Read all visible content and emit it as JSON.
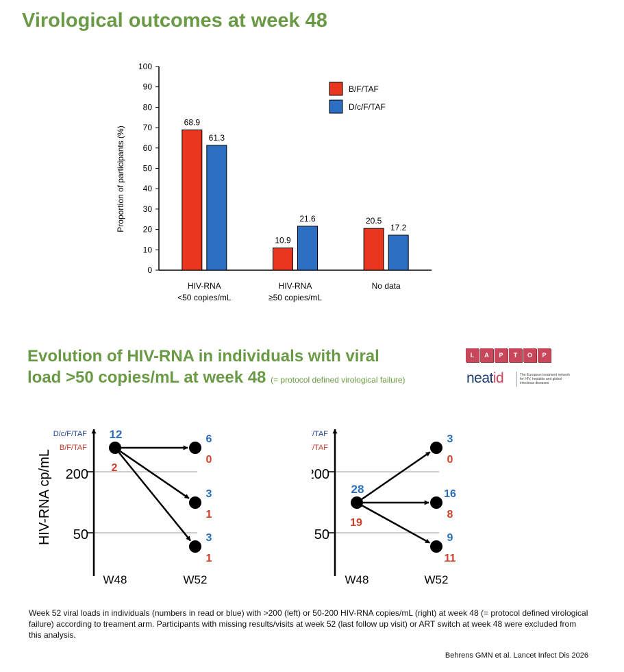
{
  "page": {
    "title": "Virological outcomes at week 48",
    "section_title_line1": "Evolution of HIV-RNA in individuals with viral",
    "section_title_line2": "load >50 copies/mL at week 48",
    "section_title_note": "(= protocol defined virological failure)",
    "caption": "Week 52 viral loads in individuals (numbers in read or blue) with >200 (left) or 50-200 HIV-RNA copies/mL (right) at week 48 (= protocol defined virological failure) according to treament arm. Participants with missing results/visits at week 52 (last follow up visit) or ART switch at week 48 were excluded from this analysis.",
    "reference": "Behrens GMN et al. Lancet Infect Dis 2026"
  },
  "logos": {
    "laptop_letters": [
      "L",
      "A",
      "P",
      "T",
      "O",
      "P"
    ],
    "neatid_main": "neat",
    "neatid_accent": "id",
    "neatid_tagline": "The European treatment network for HIV, hepatitis and global infectious diseases"
  },
  "colors": {
    "title_green": "#6a9a45",
    "bf_taf": "#e8361f",
    "dcf_taf": "#2c6fc2",
    "bf_label": "#c0392b",
    "dcf_label": "#1f3f8c",
    "count_blue": "#2a6fb8",
    "count_red": "#d0402a"
  },
  "chart_data": [
    {
      "type": "bar",
      "categories": [
        "HIV-RNA\n<50 copies/mL",
        "HIV-RNA\n≥50 copies/mL",
        "No data"
      ],
      "series": [
        {
          "name": "B/F/TAF",
          "color": "#e8361f",
          "values": [
            68.9,
            10.9,
            20.5
          ]
        },
        {
          "name": "D/c/F/TAF",
          "color": "#2c6fc2",
          "values": [
            61.3,
            21.6,
            17.2
          ]
        }
      ],
      "ylabel": "Proportion of participants (%)",
      "ylim": [
        0,
        100
      ],
      "yticks": [
        0,
        10,
        20,
        30,
        40,
        50,
        60,
        70,
        80,
        90,
        100
      ],
      "legend": "top-right",
      "grid": false
    },
    {
      "type": "flow",
      "ylabel": "HIV-RNA cp/mL",
      "yticks": [
        200,
        50
      ],
      "x_labels": [
        "W48",
        "W52"
      ],
      "series_labels": [
        "D/c/F/TAF",
        "B/F/TAF"
      ],
      "start": {
        "level": ">200",
        "dcf_taf": 12,
        "bf_taf": 2
      },
      "end": [
        {
          "level": ">200",
          "dcf_taf": 6,
          "bf_taf": 0
        },
        {
          "level": "50-200",
          "dcf_taf": 3,
          "bf_taf": 1
        },
        {
          "level": "<50",
          "dcf_taf": 3,
          "bf_taf": 1
        }
      ]
    },
    {
      "type": "flow",
      "ylabel": "HIV-RNA cp/mL",
      "yticks": [
        200,
        50
      ],
      "x_labels": [
        "W48",
        "W52"
      ],
      "series_labels": [
        "D/c/F/TAF",
        "B/F/TAF"
      ],
      "start": {
        "level": "50-200",
        "dcf_taf": 28,
        "bf_taf": 19
      },
      "end": [
        {
          "level": ">200",
          "dcf_taf": 3,
          "bf_taf": 0
        },
        {
          "level": "50-200",
          "dcf_taf": 16,
          "bf_taf": 8
        },
        {
          "level": "<50",
          "dcf_taf": 9,
          "bf_taf": 11
        }
      ]
    }
  ]
}
